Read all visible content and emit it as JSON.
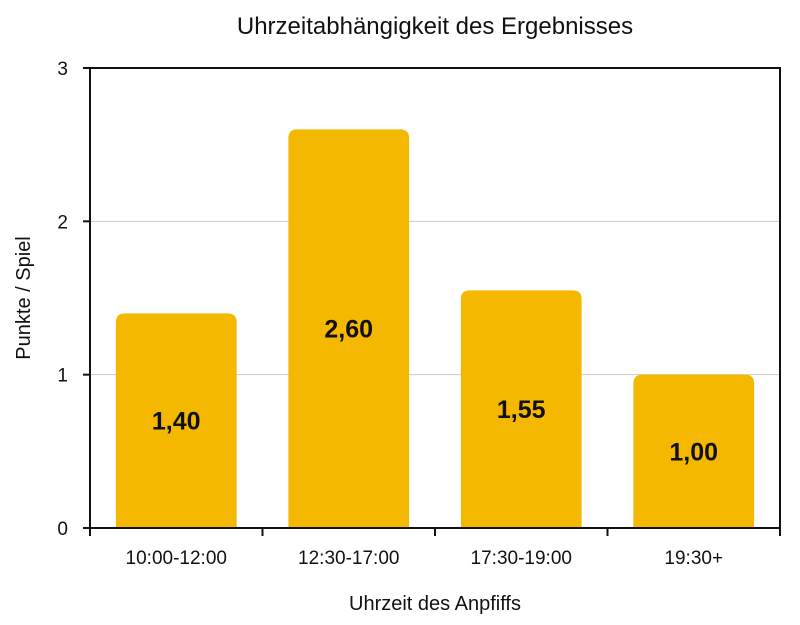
{
  "chart_data": {
    "type": "bar",
    "title": "Uhrzeitabhängigkeit des Ergebnisses",
    "xlabel": "Uhrzeit des Anpfiffs",
    "ylabel": "Punkte / Spiel",
    "categories": [
      "10:00-12:00",
      "12:30-17:00",
      "17:30-19:00",
      "19:30+"
    ],
    "values": [
      1.4,
      2.6,
      1.55,
      1.0
    ],
    "data_labels": [
      "1,40",
      "2,60",
      "1,55",
      "1,00"
    ],
    "ylim": [
      0,
      3
    ],
    "yticks": [
      0,
      1,
      2,
      3
    ],
    "ytick_labels": [
      "0",
      "1",
      "2",
      "3"
    ],
    "grid": true,
    "bar_color": "#F5B800",
    "grid_color": "#cccccc"
  }
}
